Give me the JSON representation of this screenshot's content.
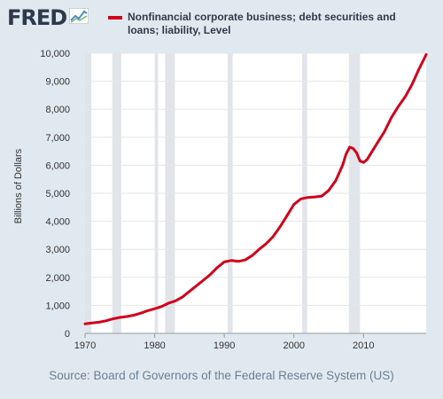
{
  "header": {
    "logo_text": "FRED",
    "legend_label": "Nonfinancial corporate business; debt securities and loans; liability, Level"
  },
  "footer": {
    "source": "Source: Board of Governors of the Federal Reserve System (US)"
  },
  "colors": {
    "background": "#e1e9f0",
    "plot_background": "#ffffff",
    "line": "#d0021b",
    "recession_shading": "#e1e5ea"
  },
  "icons": [
    "fred-logo-graph-icon"
  ],
  "chart_data": {
    "type": "line",
    "ylabel": "Billions of Dollars",
    "xlabel": "",
    "xlim": [
      1970,
      2019
    ],
    "ylim": [
      0,
      10000
    ],
    "x_ticks": [
      1970,
      1980,
      1990,
      2000,
      2010
    ],
    "y_ticks": [
      0,
      1000,
      2000,
      3000,
      4000,
      5000,
      6000,
      7000,
      8000,
      9000,
      10000
    ],
    "y_tick_labels": [
      "0",
      "1,000",
      "2,000",
      "3,000",
      "4,000",
      "5,000",
      "6,000",
      "7,000",
      "8,000",
      "9,000",
      "10,000"
    ],
    "grid": true,
    "recessions": [
      [
        1969.9,
        1970.9
      ],
      [
        1973.9,
        1975.2
      ],
      [
        1980.0,
        1980.5
      ],
      [
        1981.5,
        1982.9
      ],
      [
        1990.5,
        1991.2
      ],
      [
        2001.2,
        2001.9
      ],
      [
        2007.9,
        2009.5
      ]
    ],
    "series": [
      {
        "name": "Nonfinancial corporate business; debt securities and loans; liability, Level",
        "x": [
          1970,
          1971,
          1972,
          1973,
          1974,
          1975,
          1976,
          1977,
          1978,
          1979,
          1980,
          1981,
          1982,
          1983,
          1984,
          1985,
          1986,
          1987,
          1988,
          1989,
          1990,
          1991,
          1992,
          1993,
          1994,
          1995,
          1996,
          1997,
          1998,
          1999,
          2000,
          2001,
          2002,
          2003,
          2004,
          2005,
          2006,
          2007,
          2007.5,
          2008,
          2008.5,
          2009,
          2009.5,
          2010,
          2010.5,
          2011,
          2012,
          2013,
          2014,
          2015,
          2016,
          2017,
          2018,
          2018.5,
          2019
        ],
        "y": [
          340,
          370,
          400,
          450,
          520,
          570,
          600,
          650,
          720,
          810,
          880,
          960,
          1080,
          1160,
          1300,
          1500,
          1700,
          1900,
          2100,
          2350,
          2550,
          2600,
          2570,
          2620,
          2780,
          3000,
          3200,
          3450,
          3800,
          4200,
          4600,
          4800,
          4850,
          4870,
          4900,
          5100,
          5450,
          6000,
          6400,
          6650,
          6600,
          6450,
          6150,
          6100,
          6200,
          6400,
          6800,
          7200,
          7700,
          8100,
          8450,
          8900,
          9450,
          9700,
          9950
        ]
      }
    ]
  }
}
